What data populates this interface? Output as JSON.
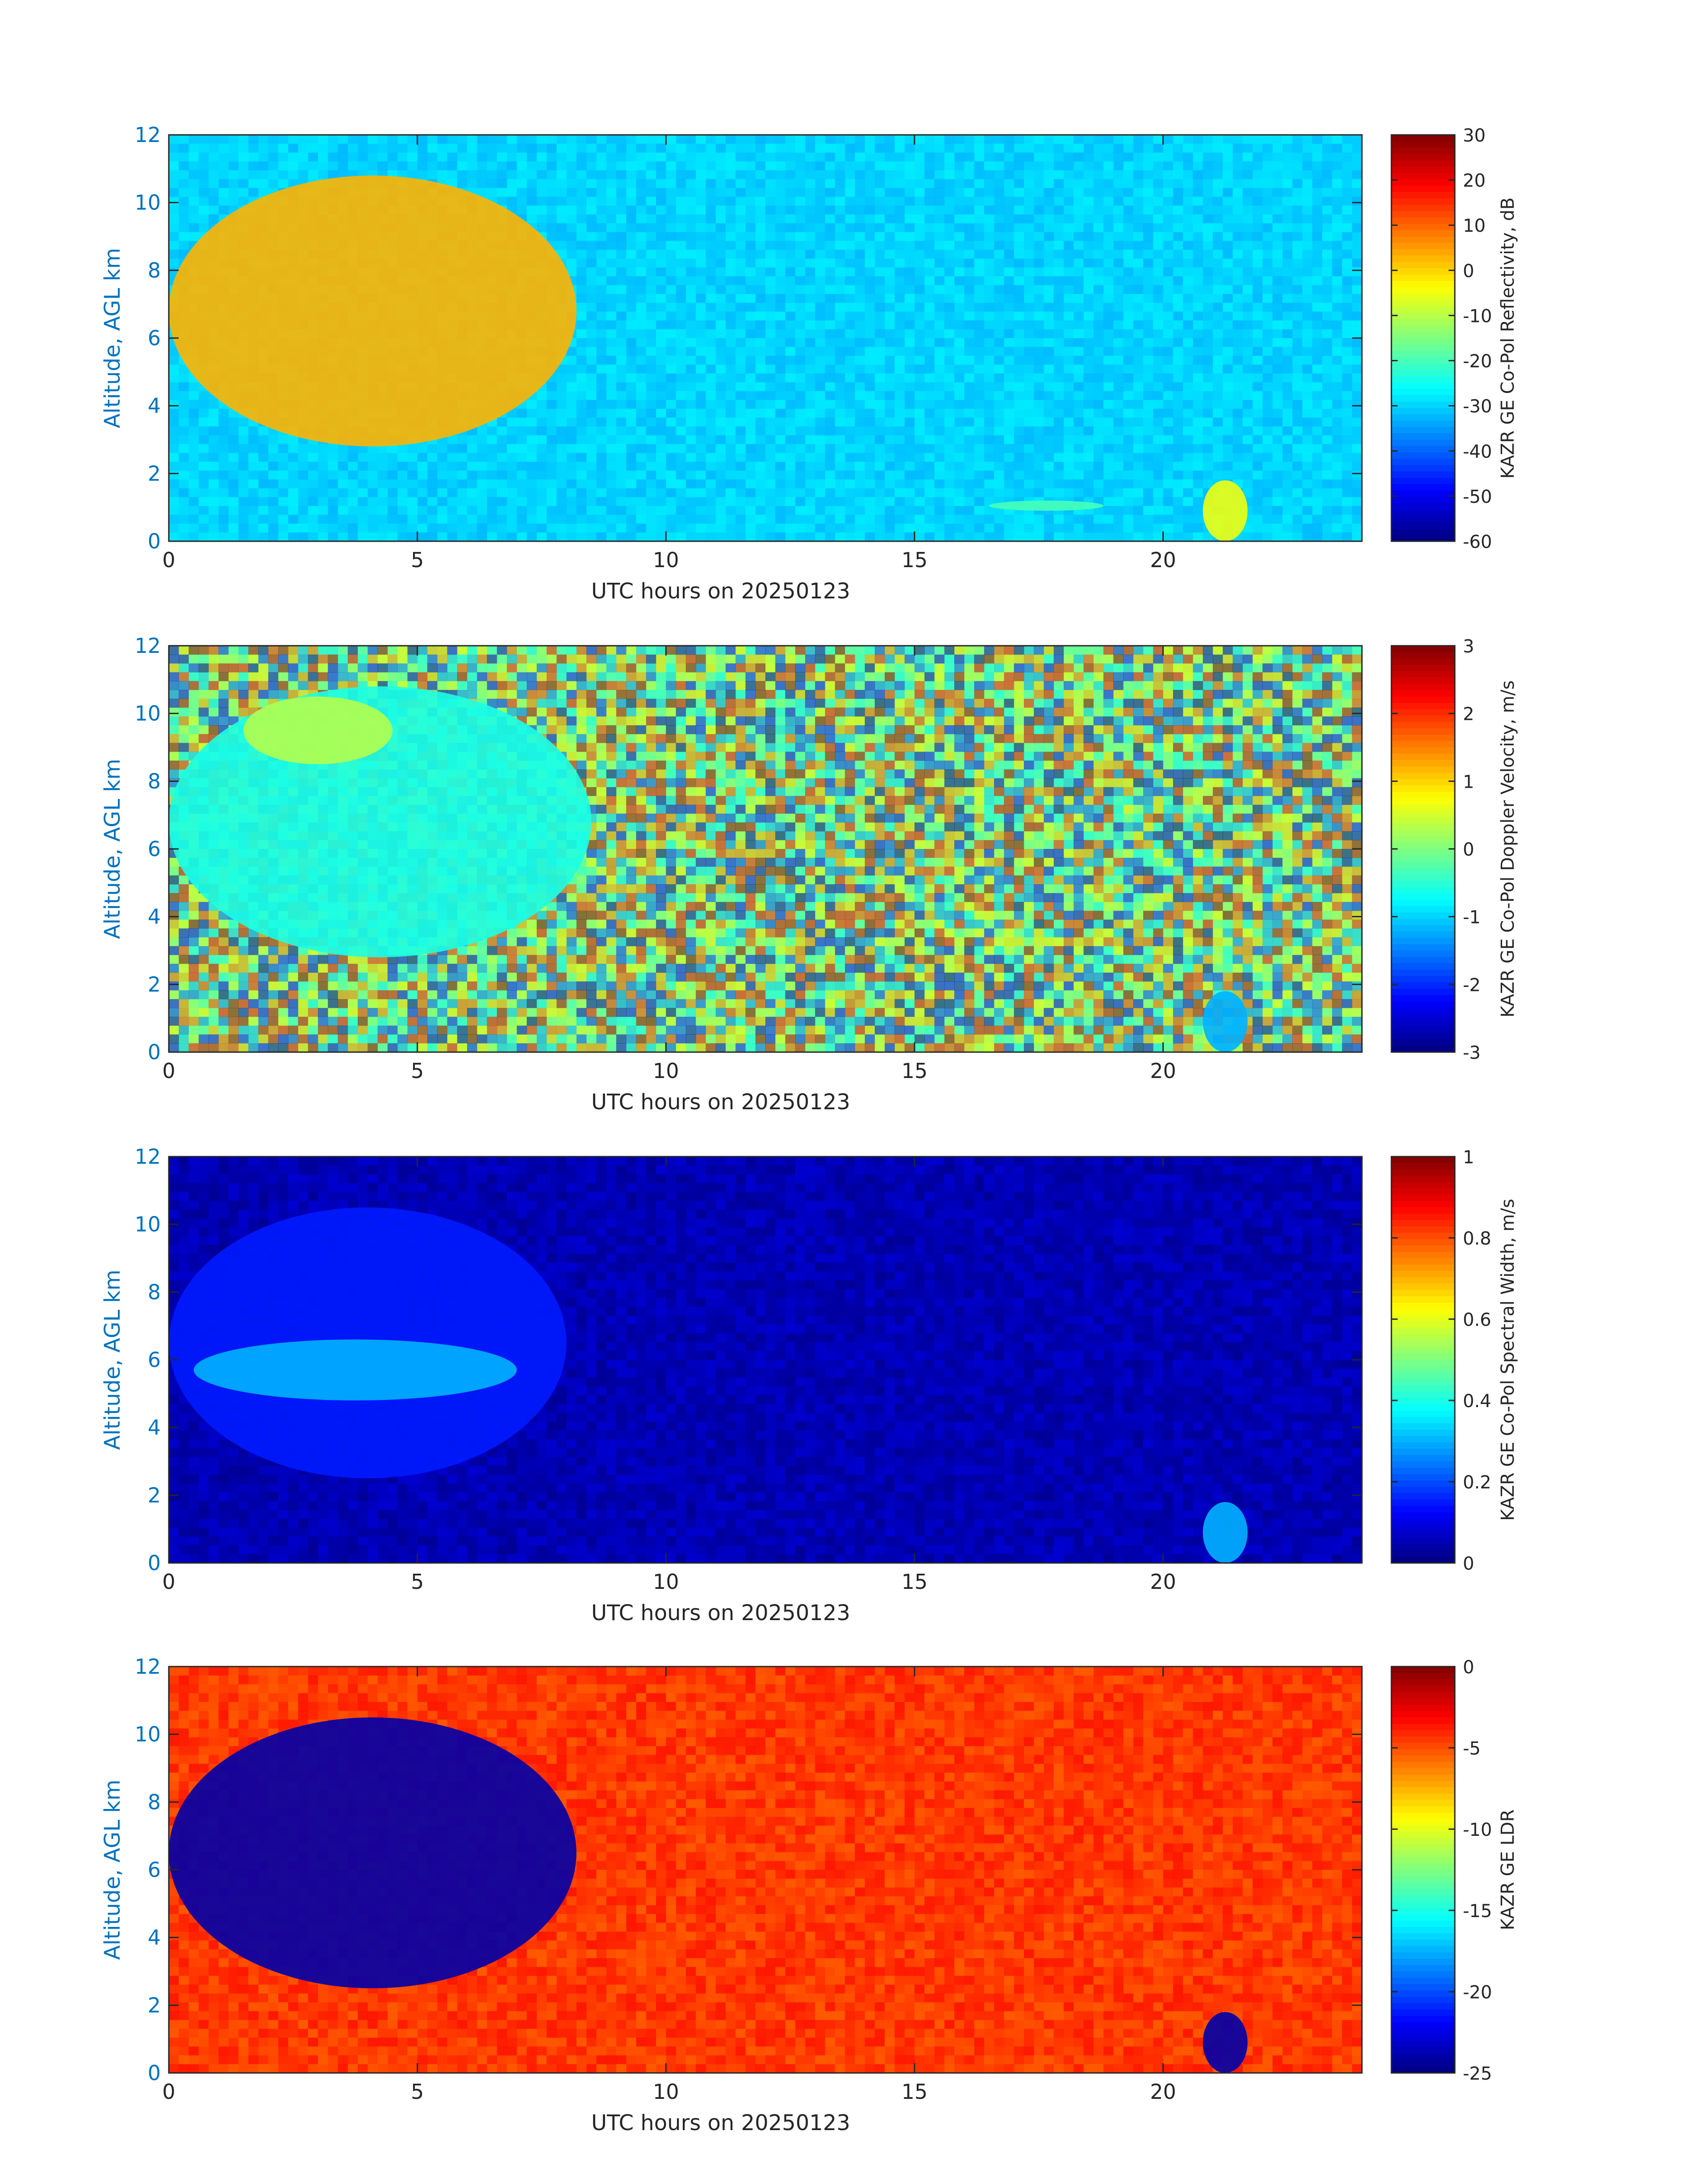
{
  "chart_data": [
    {
      "type": "heatmap",
      "ylabel": "Altitude, AGL km",
      "xlabel": "UTC hours on 20250123",
      "colorbar_label": "KAZR GE Co-Pol Reflectivity, dB",
      "xlim": [
        0,
        24
      ],
      "ylim": [
        0,
        12
      ],
      "x_ticks": [
        0,
        5,
        10,
        15,
        20
      ],
      "y_ticks": [
        0,
        2,
        4,
        6,
        8,
        10,
        12
      ],
      "clim": [
        -60,
        30
      ],
      "colorbar_ticks": [
        30,
        20,
        10,
        0,
        -10,
        -20,
        -30,
        -40,
        -50,
        -60
      ],
      "colormap": "jet",
      "background_value": -30,
      "noise": 4,
      "features": [
        {
          "label": "upper cloud",
          "x": [
            0.0,
            8.2
          ],
          "y": [
            2.8,
            10.8
          ],
          "value": 3
        },
        {
          "label": "low cloud",
          "x": [
            20.8,
            21.7
          ],
          "y": [
            0.0,
            1.8
          ],
          "value": -5
        },
        {
          "label": "boundary layer",
          "x": [
            16.5,
            18.8
          ],
          "y": [
            0.9,
            1.2
          ],
          "value": -20
        }
      ]
    },
    {
      "type": "heatmap",
      "ylabel": "Altitude, AGL km",
      "xlabel": "UTC hours on 20250123",
      "colorbar_label": "KAZR GE Co-Pol Doppler Velocity, m/s",
      "xlim": [
        0,
        24
      ],
      "ylim": [
        0,
        12
      ],
      "x_ticks": [
        0,
        5,
        10,
        15,
        20
      ],
      "y_ticks": [
        0,
        2,
        4,
        6,
        8,
        10,
        12
      ],
      "clim": [
        -3,
        3
      ],
      "colorbar_ticks": [
        3,
        2,
        1,
        0,
        -1,
        -2,
        -3
      ],
      "colormap": "jet",
      "background_value": 0,
      "noise": 3,
      "features": [
        {
          "label": "upper cloud",
          "x": [
            0.0,
            8.5
          ],
          "y": [
            2.8,
            10.8
          ],
          "value": -0.6
        },
        {
          "label": "cloud top",
          "x": [
            1.5,
            4.5
          ],
          "y": [
            8.5,
            10.5
          ],
          "value": 0.3
        },
        {
          "label": "low cloud",
          "x": [
            20.8,
            21.7
          ],
          "y": [
            0.0,
            1.8
          ],
          "value": -1.2
        }
      ]
    },
    {
      "type": "heatmap",
      "ylabel": "Altitude, AGL km",
      "xlabel": "UTC hours on 20250123",
      "colorbar_label": "KAZR GE Co-Pol Spectral Width, m/s",
      "xlim": [
        0,
        24
      ],
      "ylim": [
        0,
        12
      ],
      "x_ticks": [
        0,
        5,
        10,
        15,
        20
      ],
      "y_ticks": [
        0,
        2,
        4,
        6,
        8,
        10,
        12
      ],
      "clim": [
        0,
        1
      ],
      "colorbar_ticks": [
        1,
        0.8,
        0.6,
        0.4,
        0.2,
        0
      ],
      "colormap": "jet",
      "background_value": 0.05,
      "noise": 0.05,
      "features": [
        {
          "label": "upper cloud",
          "x": [
            0.0,
            8.0
          ],
          "y": [
            2.5,
            10.5
          ],
          "value": 0.15
        },
        {
          "label": "shear layer",
          "x": [
            0.5,
            7.0
          ],
          "y": [
            4.8,
            6.6
          ],
          "value": 0.3
        },
        {
          "label": "low cloud",
          "x": [
            20.8,
            21.7
          ],
          "y": [
            0.0,
            1.8
          ],
          "value": 0.3
        }
      ]
    },
    {
      "type": "heatmap",
      "ylabel": "Altitude, AGL km",
      "xlabel": "UTC hours on 20250123",
      "colorbar_label": "KAZR GE LDR",
      "xlim": [
        0,
        24
      ],
      "ylim": [
        0,
        12
      ],
      "x_ticks": [
        0,
        5,
        10,
        15,
        20
      ],
      "y_ticks": [
        0,
        2,
        4,
        6,
        8,
        10,
        12
      ],
      "clim": [
        -25,
        0
      ],
      "colorbar_ticks": [
        0,
        -5,
        -10,
        -15,
        -20,
        -25
      ],
      "colormap": "jet",
      "background_value": -4.5,
      "noise": 1.5,
      "features": [
        {
          "label": "upper cloud",
          "x": [
            0.0,
            8.2
          ],
          "y": [
            2.5,
            10.5
          ],
          "value": -24
        },
        {
          "label": "low cloud",
          "x": [
            20.8,
            21.7
          ],
          "y": [
            0.0,
            1.8
          ],
          "value": -24
        }
      ]
    }
  ]
}
